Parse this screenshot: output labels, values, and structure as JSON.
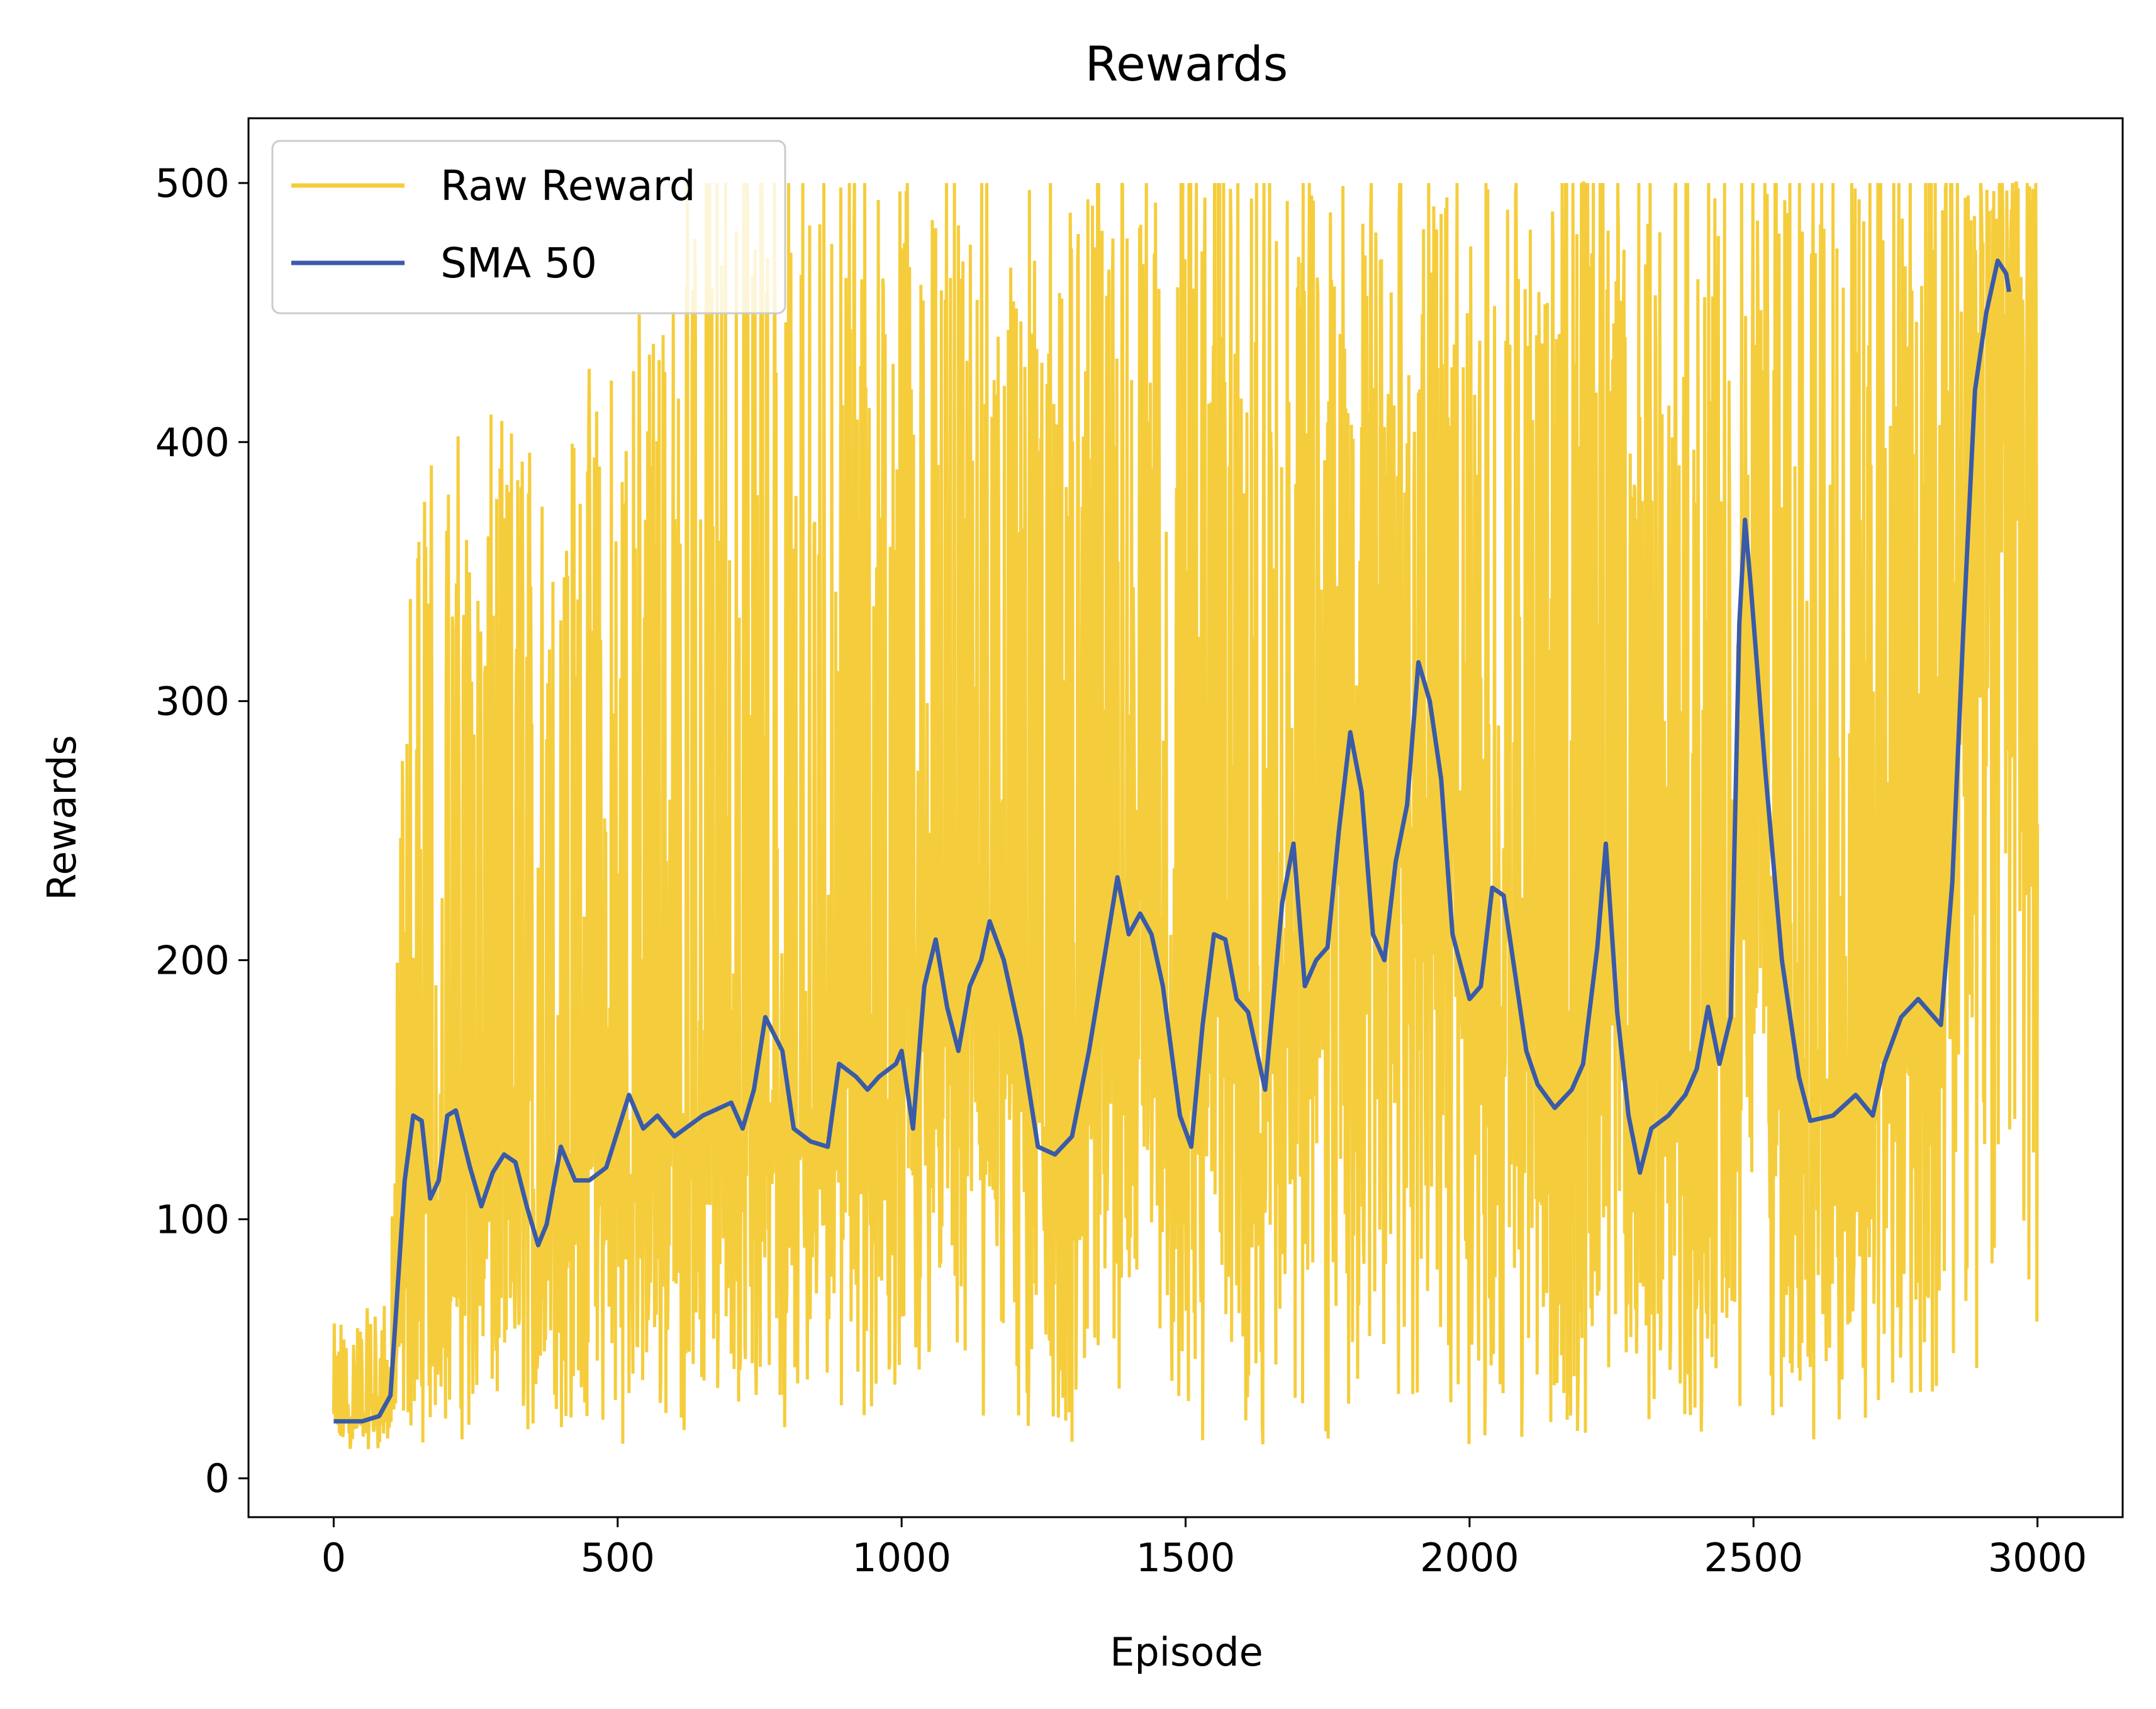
{
  "chart_data": {
    "type": "line",
    "title": "Rewards",
    "xlabel": "Episode",
    "ylabel": "Rewards",
    "xlim": [
      -150,
      3150
    ],
    "ylim": [
      -15,
      525
    ],
    "xticks": [
      0,
      500,
      1000,
      1500,
      2000,
      2500,
      3000
    ],
    "yticks": [
      0,
      100,
      200,
      300,
      400,
      500
    ],
    "xtick_labels": [
      "0",
      "500",
      "1000",
      "1500",
      "2000",
      "2500",
      "3000"
    ],
    "ytick_labels": [
      "0",
      "100",
      "200",
      "300",
      "400",
      "500"
    ],
    "grid": false,
    "legend": "top-left",
    "series": [
      {
        "name": "Raw Reward",
        "color": "#f5cd3c",
        "style": "raw",
        "x_range": [
          0,
          3000
        ],
        "mean": [
          [
            0,
            22
          ],
          [
            100,
            28
          ],
          [
            130,
            88
          ],
          [
            200,
            110
          ],
          [
            300,
            108
          ],
          [
            360,
            98
          ],
          [
            400,
            115
          ],
          [
            500,
            122
          ],
          [
            600,
            128
          ],
          [
            700,
            135
          ],
          [
            750,
            158
          ],
          [
            800,
            130
          ],
          [
            900,
            150
          ],
          [
            1000,
            145
          ],
          [
            1050,
            195
          ],
          [
            1100,
            170
          ],
          [
            1150,
            200
          ],
          [
            1200,
            180
          ],
          [
            1250,
            130
          ],
          [
            1300,
            135
          ],
          [
            1350,
            175
          ],
          [
            1400,
            215
          ],
          [
            1450,
            210
          ],
          [
            1500,
            130
          ],
          [
            1550,
            205
          ],
          [
            1600,
            185
          ],
          [
            1650,
            170
          ],
          [
            1700,
            225
          ],
          [
            1750,
            205
          ],
          [
            1800,
            270
          ],
          [
            1850,
            210
          ],
          [
            1900,
            255
          ],
          [
            1950,
            290
          ],
          [
            2000,
            185
          ],
          [
            2050,
            225
          ],
          [
            2100,
            165
          ],
          [
            2150,
            145
          ],
          [
            2200,
            165
          ],
          [
            2250,
            220
          ],
          [
            2300,
            140
          ],
          [
            2400,
            165
          ],
          [
            2450,
            160
          ],
          [
            2500,
            340
          ],
          [
            2550,
            160
          ],
          [
            2600,
            140
          ],
          [
            2700,
            145
          ],
          [
            2750,
            170
          ],
          [
            2800,
            175
          ],
          [
            2850,
            300
          ],
          [
            2900,
            440
          ],
          [
            3000,
            460
          ]
        ],
        "low": [
          [
            0,
            10
          ],
          [
            140,
            12
          ],
          [
            2500,
            12
          ],
          [
            2850,
            12
          ],
          [
            3000,
            40
          ]
        ],
        "high": [
          [
            0,
            60
          ],
          [
            100,
            70
          ],
          [
            130,
            400
          ],
          [
            400,
            420
          ],
          [
            700,
            500
          ],
          [
            1000,
            500
          ],
          [
            1500,
            500
          ],
          [
            2000,
            500
          ],
          [
            2500,
            500
          ],
          [
            3000,
            500
          ]
        ]
      },
      {
        "name": "SMA 50",
        "color": "#3a5ba8",
        "style": "line",
        "points": [
          [
            0,
            22
          ],
          [
            50,
            22
          ],
          [
            80,
            24
          ],
          [
            100,
            32
          ],
          [
            110,
            65
          ],
          [
            125,
            115
          ],
          [
            140,
            140
          ],
          [
            155,
            138
          ],
          [
            170,
            108
          ],
          [
            185,
            115
          ],
          [
            200,
            140
          ],
          [
            215,
            142
          ],
          [
            240,
            120
          ],
          [
            260,
            105
          ],
          [
            280,
            118
          ],
          [
            300,
            125
          ],
          [
            320,
            122
          ],
          [
            340,
            105
          ],
          [
            360,
            90
          ],
          [
            375,
            98
          ],
          [
            400,
            128
          ],
          [
            425,
            115
          ],
          [
            450,
            115
          ],
          [
            480,
            120
          ],
          [
            520,
            148
          ],
          [
            545,
            135
          ],
          [
            570,
            140
          ],
          [
            600,
            132
          ],
          [
            650,
            140
          ],
          [
            700,
            145
          ],
          [
            720,
            135
          ],
          [
            740,
            150
          ],
          [
            760,
            178
          ],
          [
            790,
            165
          ],
          [
            810,
            135
          ],
          [
            840,
            130
          ],
          [
            870,
            128
          ],
          [
            890,
            160
          ],
          [
            920,
            155
          ],
          [
            940,
            150
          ],
          [
            960,
            155
          ],
          [
            990,
            160
          ],
          [
            1000,
            165
          ],
          [
            1020,
            135
          ],
          [
            1040,
            190
          ],
          [
            1060,
            208
          ],
          [
            1080,
            182
          ],
          [
            1100,
            165
          ],
          [
            1120,
            190
          ],
          [
            1140,
            200
          ],
          [
            1155,
            215
          ],
          [
            1180,
            200
          ],
          [
            1210,
            170
          ],
          [
            1240,
            128
          ],
          [
            1270,
            125
          ],
          [
            1300,
            132
          ],
          [
            1330,
            165
          ],
          [
            1360,
            205
          ],
          [
            1380,
            232
          ],
          [
            1400,
            210
          ],
          [
            1420,
            218
          ],
          [
            1440,
            210
          ],
          [
            1460,
            190
          ],
          [
            1490,
            140
          ],
          [
            1510,
            128
          ],
          [
            1530,
            175
          ],
          [
            1550,
            210
          ],
          [
            1570,
            208
          ],
          [
            1590,
            185
          ],
          [
            1610,
            180
          ],
          [
            1640,
            150
          ],
          [
            1670,
            222
          ],
          [
            1690,
            245
          ],
          [
            1710,
            190
          ],
          [
            1730,
            200
          ],
          [
            1750,
            205
          ],
          [
            1770,
            250
          ],
          [
            1790,
            288
          ],
          [
            1810,
            265
          ],
          [
            1830,
            210
          ],
          [
            1850,
            200
          ],
          [
            1870,
            238
          ],
          [
            1890,
            260
          ],
          [
            1910,
            315
          ],
          [
            1930,
            300
          ],
          [
            1950,
            270
          ],
          [
            1970,
            210
          ],
          [
            2000,
            185
          ],
          [
            2020,
            190
          ],
          [
            2040,
            228
          ],
          [
            2060,
            225
          ],
          [
            2080,
            195
          ],
          [
            2100,
            165
          ],
          [
            2120,
            152
          ],
          [
            2150,
            143
          ],
          [
            2180,
            150
          ],
          [
            2200,
            160
          ],
          [
            2225,
            205
          ],
          [
            2240,
            245
          ],
          [
            2260,
            180
          ],
          [
            2280,
            140
          ],
          [
            2300,
            118
          ],
          [
            2320,
            135
          ],
          [
            2350,
            140
          ],
          [
            2380,
            148
          ],
          [
            2400,
            158
          ],
          [
            2420,
            182
          ],
          [
            2440,
            160
          ],
          [
            2460,
            178
          ],
          [
            2475,
            330
          ],
          [
            2485,
            370
          ],
          [
            2495,
            345
          ],
          [
            2520,
            275
          ],
          [
            2550,
            200
          ],
          [
            2580,
            155
          ],
          [
            2600,
            138
          ],
          [
            2640,
            140
          ],
          [
            2680,
            148
          ],
          [
            2710,
            140
          ],
          [
            2730,
            160
          ],
          [
            2760,
            178
          ],
          [
            2790,
            185
          ],
          [
            2810,
            180
          ],
          [
            2830,
            175
          ],
          [
            2850,
            230
          ],
          [
            2870,
            330
          ],
          [
            2890,
            420
          ],
          [
            2910,
            450
          ],
          [
            2930,
            470
          ],
          [
            2945,
            465
          ],
          [
            2950,
            458
          ]
        ]
      }
    ]
  }
}
